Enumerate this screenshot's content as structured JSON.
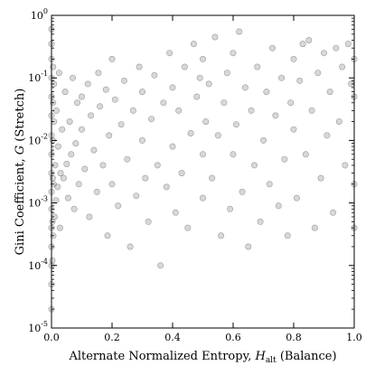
{
  "chart_data": {
    "type": "scatter",
    "xlabel": {
      "prefix": "Alternate Normalized Entropy, ",
      "symbol": "H",
      "subscript": "alt",
      "suffix": " (Balance)"
    },
    "ylabel": {
      "prefix": "Gini Coefficient, ",
      "symbol": "G",
      "suffix": " (Stretch)"
    },
    "xlim": [
      0,
      1
    ],
    "ylim": [
      1e-05,
      1
    ],
    "yscale": "log",
    "grid": false,
    "x_ticks": [
      "0.0",
      "0.2",
      "0.4",
      "0.6",
      "0.8",
      "1.0"
    ],
    "y_ticks": [
      {
        "base": "10",
        "exp": "-5"
      },
      {
        "base": "10",
        "exp": "-4"
      },
      {
        "base": "10",
        "exp": "-3"
      },
      {
        "base": "10",
        "exp": "-2"
      },
      {
        "base": "10",
        "exp": "-1"
      },
      {
        "base": "10",
        "exp": "0"
      }
    ],
    "marker_color": "#7f7f7f",
    "marker_opacity": 0.3,
    "marker_edge_color": "#404040",
    "series": [
      {
        "points": [
          [
            0.0,
            2e-05
          ],
          [
            0.0,
            5e-05
          ],
          [
            0.0,
            0.0001
          ],
          [
            0.0,
            0.0002
          ],
          [
            0.0,
            0.0004
          ],
          [
            0.0,
            0.0008
          ],
          [
            0.0,
            0.0015
          ],
          [
            0.0,
            0.003
          ],
          [
            0.0,
            0.006
          ],
          [
            0.0,
            0.012
          ],
          [
            0.0,
            0.025
          ],
          [
            0.0,
            0.05
          ],
          [
            0.0,
            0.1
          ],
          [
            0.0,
            0.2
          ],
          [
            0.0,
            0.35
          ],
          [
            0.0,
            0.6
          ],
          [
            0.003,
            0.00012
          ],
          [
            0.003,
            0.0005
          ],
          [
            0.004,
            0.0025
          ],
          [
            0.004,
            0.01
          ],
          [
            0.005,
            0.04
          ],
          [
            0.005,
            0.15
          ],
          [
            0.006,
            0.0003
          ],
          [
            0.007,
            0.002
          ],
          [
            0.008,
            0.02
          ],
          [
            0.008,
            0.08
          ],
          [
            0.01,
            0.0006
          ],
          [
            0.012,
            0.004
          ],
          [
            0.015,
            0.0011
          ],
          [
            0.016,
            0.03
          ],
          [
            0.02,
            0.0018
          ],
          [
            0.022,
            0.008
          ],
          [
            0.025,
            0.12
          ],
          [
            0.028,
            0.0004
          ],
          [
            0.03,
            0.003
          ],
          [
            0.035,
            0.015
          ],
          [
            0.04,
            0.0025
          ],
          [
            0.045,
            0.06
          ],
          [
            0.05,
            0.0042
          ],
          [
            0.055,
            0.0012
          ],
          [
            0.06,
            0.02
          ],
          [
            0.065,
            0.006
          ],
          [
            0.07,
            0.1
          ],
          [
            0.075,
            0.0008
          ],
          [
            0.08,
            0.009
          ],
          [
            0.085,
            0.04
          ],
          [
            0.09,
            0.002
          ],
          [
            0.1,
            0.015
          ],
          [
            0.1,
            0.05
          ],
          [
            0.11,
            0.0035
          ],
          [
            0.12,
            0.08
          ],
          [
            0.125,
            0.0006
          ],
          [
            0.13,
            0.025
          ],
          [
            0.14,
            0.007
          ],
          [
            0.15,
            0.0015
          ],
          [
            0.155,
            0.12
          ],
          [
            0.16,
            0.035
          ],
          [
            0.17,
            0.004
          ],
          [
            0.18,
            0.065
          ],
          [
            0.185,
            0.0003
          ],
          [
            0.19,
            0.012
          ],
          [
            0.2,
            0.002
          ],
          [
            0.2,
            0.2
          ],
          [
            0.21,
            0.045
          ],
          [
            0.22,
            0.0009
          ],
          [
            0.23,
            0.018
          ],
          [
            0.24,
            0.09
          ],
          [
            0.25,
            0.005
          ],
          [
            0.26,
            0.0002
          ],
          [
            0.27,
            0.03
          ],
          [
            0.28,
            0.0013
          ],
          [
            0.29,
            0.15
          ],
          [
            0.3,
            0.01
          ],
          [
            0.3,
            0.06
          ],
          [
            0.31,
            0.0025
          ],
          [
            0.32,
            0.0005
          ],
          [
            0.33,
            0.022
          ],
          [
            0.34,
            0.11
          ],
          [
            0.35,
            0.004
          ],
          [
            0.36,
            0.0001
          ],
          [
            0.37,
            0.04
          ],
          [
            0.38,
            0.0018
          ],
          [
            0.39,
            0.25
          ],
          [
            0.4,
            0.008
          ],
          [
            0.4,
            0.07
          ],
          [
            0.41,
            0.0007
          ],
          [
            0.42,
            0.03
          ],
          [
            0.43,
            0.003
          ],
          [
            0.44,
            0.15
          ],
          [
            0.45,
            0.0004
          ],
          [
            0.46,
            0.013
          ],
          [
            0.47,
            0.35
          ],
          [
            0.48,
            0.05
          ],
          [
            0.49,
            0.1
          ],
          [
            0.5,
            0.2
          ],
          [
            0.5,
            0.006
          ],
          [
            0.5,
            0.0012
          ],
          [
            0.51,
            0.02
          ],
          [
            0.52,
            0.08
          ],
          [
            0.53,
            0.0025
          ],
          [
            0.54,
            0.45
          ],
          [
            0.55,
            0.012
          ],
          [
            0.56,
            0.0003
          ],
          [
            0.57,
            0.04
          ],
          [
            0.58,
            0.12
          ],
          [
            0.59,
            0.0008
          ],
          [
            0.6,
            0.006
          ],
          [
            0.6,
            0.25
          ],
          [
            0.61,
            0.018
          ],
          [
            0.62,
            0.55
          ],
          [
            0.63,
            0.0015
          ],
          [
            0.64,
            0.07
          ],
          [
            0.65,
            0.0002
          ],
          [
            0.66,
            0.03
          ],
          [
            0.67,
            0.004
          ],
          [
            0.68,
            0.15
          ],
          [
            0.69,
            0.0005
          ],
          [
            0.7,
            0.01
          ],
          [
            0.71,
            0.06
          ],
          [
            0.72,
            0.002
          ],
          [
            0.73,
            0.3
          ],
          [
            0.74,
            0.025
          ],
          [
            0.75,
            0.0009
          ],
          [
            0.76,
            0.1
          ],
          [
            0.77,
            0.005
          ],
          [
            0.78,
            0.0003
          ],
          [
            0.79,
            0.04
          ],
          [
            0.8,
            0.2
          ],
          [
            0.8,
            0.015
          ],
          [
            0.81,
            0.0012
          ],
          [
            0.82,
            0.09
          ],
          [
            0.83,
            0.35
          ],
          [
            0.84,
            0.006
          ],
          [
            0.85,
            0.4
          ],
          [
            0.86,
            0.03
          ],
          [
            0.87,
            0.0004
          ],
          [
            0.88,
            0.12
          ],
          [
            0.89,
            0.0025
          ],
          [
            0.9,
            0.25
          ],
          [
            0.91,
            0.012
          ],
          [
            0.92,
            0.06
          ],
          [
            0.93,
            0.0007
          ],
          [
            0.94,
            0.3
          ],
          [
            0.95,
            0.02
          ],
          [
            0.96,
            0.15
          ],
          [
            0.97,
            0.004
          ],
          [
            0.98,
            0.35
          ],
          [
            0.99,
            0.08
          ],
          [
            1.0,
            0.05
          ],
          [
            1.0,
            0.2
          ],
          [
            1.0,
            0.002
          ],
          [
            1.0,
            0.0004
          ]
        ]
      }
    ]
  }
}
